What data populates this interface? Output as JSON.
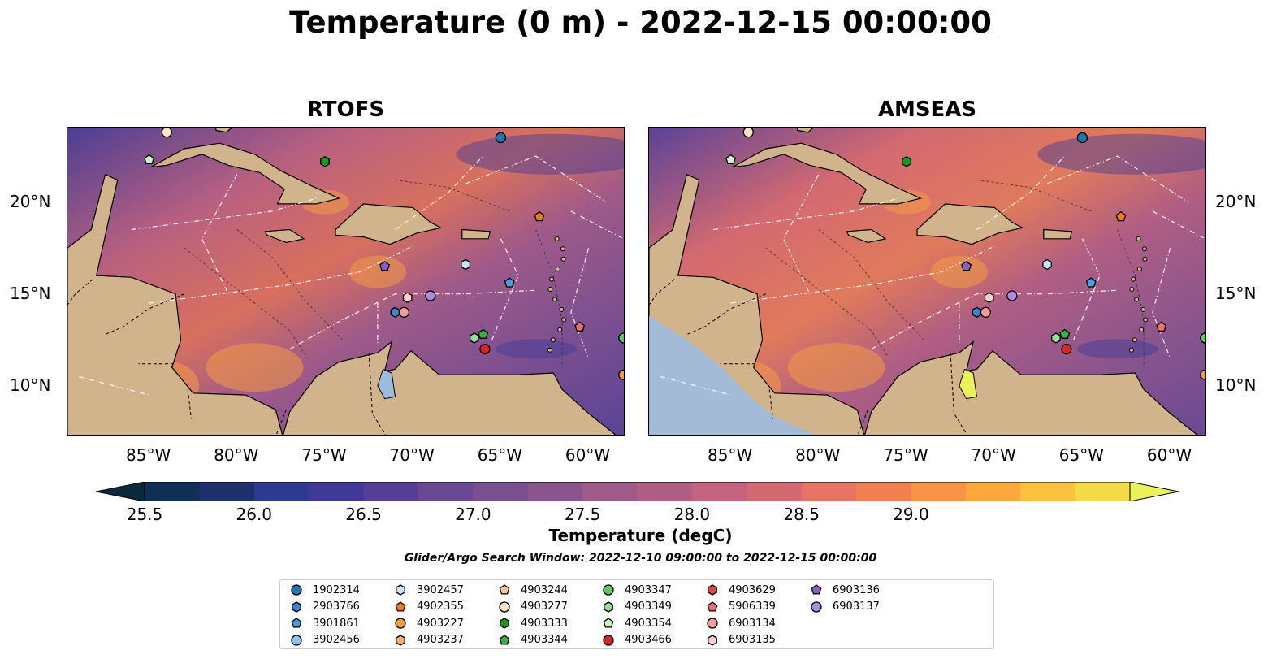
{
  "title": "Temperature (0 m) - 2022-12-15 00:00:00",
  "panels": [
    {
      "title": "RTOFS"
    },
    {
      "title": "AMSEAS"
    }
  ],
  "axes": {
    "x_ticks": [
      "85°W",
      "80°W",
      "75°W",
      "70°W",
      "65°W",
      "60°W"
    ],
    "y_ticks": [
      "20°N",
      "15°N",
      "10°N"
    ]
  },
  "colorbar": {
    "label": "Temperature (degC)",
    "ticks": [
      "25.5",
      "26.0",
      "26.5",
      "27.0",
      "27.5",
      "28.0",
      "28.5",
      "29.0"
    ],
    "colors": [
      "#082a3c",
      "#0f2f55",
      "#1f306d",
      "#2d3a8f",
      "#40399a",
      "#563f99",
      "#684893",
      "#7a4f90",
      "#8a558d",
      "#9e5a89",
      "#b05e83",
      "#c3637d",
      "#d46a71",
      "#e57462",
      "#f28151",
      "#f99345",
      "#fba93e",
      "#fcc13e",
      "#f5da47",
      "#eaf25a"
    ]
  },
  "search_window": "Glider/Argo Search Window: 2022-12-10 09:00:00 to 2022-12-15 00:00:00",
  "legend": [
    {
      "id": "1902314",
      "shape": "circle",
      "color": "#1f77b4"
    },
    {
      "id": "2903766",
      "shape": "hexagon",
      "color": "#3a86c8"
    },
    {
      "id": "3901861",
      "shape": "pentagon",
      "color": "#4a9fe0"
    },
    {
      "id": "3902456",
      "shape": "circle",
      "color": "#8fc3f0"
    },
    {
      "id": "3902457",
      "shape": "hexagon",
      "color": "#c8e4fb"
    },
    {
      "id": "4902355",
      "shape": "pentagon",
      "color": "#f07a10"
    },
    {
      "id": "4903227",
      "shape": "circle",
      "color": "#f59b3a"
    },
    {
      "id": "4903237",
      "shape": "hexagon",
      "color": "#f7b26a"
    },
    {
      "id": "4903244",
      "shape": "pentagon",
      "color": "#f9c994"
    },
    {
      "id": "4903277",
      "shape": "circle",
      "color": "#fde3c8"
    },
    {
      "id": "4903333",
      "shape": "hexagon",
      "color": "#1a9a1a"
    },
    {
      "id": "4903344",
      "shape": "pentagon",
      "color": "#3cb043"
    },
    {
      "id": "4903347",
      "shape": "circle",
      "color": "#5dc863"
    },
    {
      "id": "4903349",
      "shape": "hexagon",
      "color": "#98e09a"
    },
    {
      "id": "4903354",
      "shape": "pentagon",
      "color": "#cdf3c6"
    },
    {
      "id": "4903466",
      "shape": "circle",
      "color": "#d62728"
    },
    {
      "id": "4903629",
      "shape": "hexagon",
      "color": "#e0484a"
    },
    {
      "id": "5906339",
      "shape": "pentagon",
      "color": "#ee6e6e"
    },
    {
      "id": "6903134",
      "shape": "circle",
      "color": "#f39c9c"
    },
    {
      "id": "6903135",
      "shape": "hexagon",
      "color": "#f9cfcf"
    },
    {
      "id": "6903136",
      "shape": "pentagon",
      "color": "#8a60c8"
    },
    {
      "id": "6903137",
      "shape": "circle",
      "color": "#b08ce0"
    }
  ],
  "map_colors": {
    "land": "#d2b48c",
    "nodata_fill": "#9ebbe0",
    "contour_dash": "#ffffff"
  },
  "floats": [
    {
      "id": "1902314",
      "lon": -65.0,
      "lat": 23.5
    },
    {
      "id": "2903766",
      "lon": -71.0,
      "lat": 14.0
    },
    {
      "id": "3901861",
      "lon": -64.5,
      "lat": 15.6
    },
    {
      "id": "3902457",
      "lon": -67.0,
      "lat": 16.6
    },
    {
      "id": "4902355",
      "lon": -62.8,
      "lat": 19.2
    },
    {
      "id": "4903227",
      "lon": -58.0,
      "lat": 10.6
    },
    {
      "id": "4903277",
      "lon": -84.0,
      "lat": 23.8
    },
    {
      "id": "4903333",
      "lon": -75.0,
      "lat": 22.2
    },
    {
      "id": "4903344",
      "lon": -66.0,
      "lat": 12.8
    },
    {
      "id": "4903347",
      "lon": -58.0,
      "lat": 12.6
    },
    {
      "id": "4903349",
      "lon": -66.5,
      "lat": 12.6
    },
    {
      "id": "4903354",
      "lon": -85.0,
      "lat": 22.3
    },
    {
      "id": "4903466",
      "lon": -65.9,
      "lat": 12.0
    },
    {
      "id": "5906339",
      "lon": -60.5,
      "lat": 13.2
    },
    {
      "id": "6903134",
      "lon": -70.5,
      "lat": 14.0
    },
    {
      "id": "6903135",
      "lon": -70.3,
      "lat": 14.8
    },
    {
      "id": "6903136",
      "lon": -71.6,
      "lat": 16.5
    },
    {
      "id": "6903137",
      "lon": -69.0,
      "lat": 14.9
    }
  ]
}
